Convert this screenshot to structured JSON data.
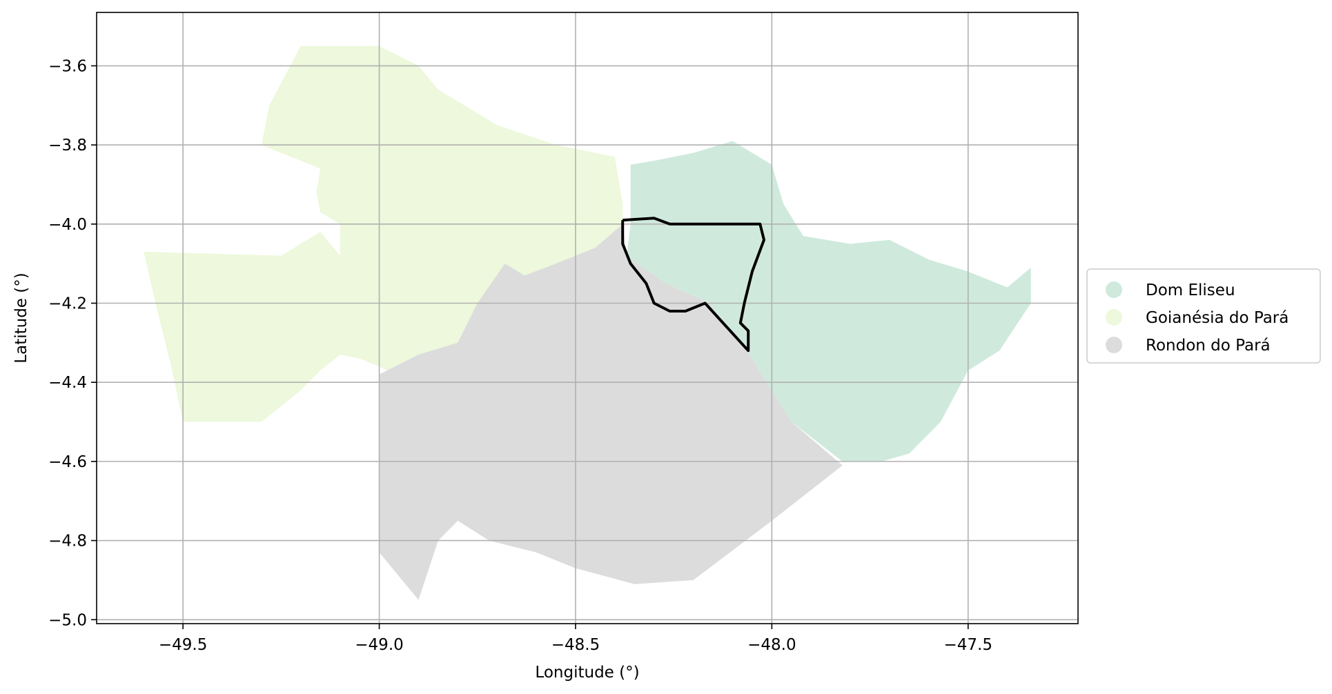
{
  "chart_data": {
    "type": "map",
    "xlabel": "Longitude (°)",
    "ylabel": "Latitude (°)",
    "xlim": [
      -49.72,
      -47.22
    ],
    "ylim": [
      -5.01,
      -3.465
    ],
    "xticks": [
      -49.5,
      -49.0,
      -48.5,
      -48.0,
      -47.5
    ],
    "xtick_labels": [
      "−49.5",
      "−49.0",
      "−48.5",
      "−48.0",
      "−47.5"
    ],
    "yticks": [
      -3.6,
      -3.8,
      -4.0,
      -4.2,
      -4.4,
      -4.6,
      -4.8,
      -5.0
    ],
    "ytick_labels": [
      "−3.6",
      "−3.8",
      "−4.0",
      "−4.2",
      "−4.4",
      "−4.6",
      "−4.8",
      "−5.0"
    ],
    "grid": true,
    "legend_position": "right-center",
    "regions": [
      {
        "name": "Dom Eliseu",
        "color": "#cfeadd",
        "outline": [
          [
            -48.36,
            -3.85
          ],
          [
            -48.3,
            -3.84
          ],
          [
            -48.2,
            -3.82
          ],
          [
            -48.1,
            -3.79
          ],
          [
            -48.0,
            -3.85
          ],
          [
            -47.97,
            -3.95
          ],
          [
            -47.92,
            -4.03
          ],
          [
            -47.8,
            -4.05
          ],
          [
            -47.7,
            -4.04
          ],
          [
            -47.6,
            -4.09
          ],
          [
            -47.5,
            -4.12
          ],
          [
            -47.4,
            -4.16
          ],
          [
            -47.34,
            -4.11
          ],
          [
            -47.34,
            -4.2
          ],
          [
            -47.42,
            -4.32
          ],
          [
            -47.5,
            -4.37
          ],
          [
            -47.57,
            -4.5
          ],
          [
            -47.65,
            -4.58
          ],
          [
            -47.72,
            -4.6
          ],
          [
            -47.82,
            -4.6
          ],
          [
            -47.95,
            -4.5
          ],
          [
            -48.07,
            -4.31
          ],
          [
            -48.16,
            -4.2
          ],
          [
            -48.27,
            -4.15
          ],
          [
            -48.37,
            -4.08
          ],
          [
            -48.36,
            -4.0
          ]
        ]
      },
      {
        "name": "Goianésia do Pará",
        "color": "#edf8dc",
        "outline": [
          [
            -49.6,
            -4.07
          ],
          [
            -49.25,
            -4.08
          ],
          [
            -49.15,
            -4.02
          ],
          [
            -49.1,
            -4.08
          ],
          [
            -49.1,
            -4.0
          ],
          [
            -49.15,
            -3.97
          ],
          [
            -49.16,
            -3.92
          ],
          [
            -49.15,
            -3.86
          ],
          [
            -49.2,
            -3.84
          ],
          [
            -49.3,
            -3.8
          ],
          [
            -49.28,
            -3.7
          ],
          [
            -49.2,
            -3.55
          ],
          [
            -49.0,
            -3.55
          ],
          [
            -48.9,
            -3.6
          ],
          [
            -48.85,
            -3.66
          ],
          [
            -48.7,
            -3.75
          ],
          [
            -48.55,
            -3.8
          ],
          [
            -48.4,
            -3.83
          ],
          [
            -48.38,
            -3.95
          ],
          [
            -48.38,
            -4.0
          ],
          [
            -48.45,
            -4.06
          ],
          [
            -48.55,
            -4.1
          ],
          [
            -48.63,
            -4.13
          ],
          [
            -48.68,
            -4.1
          ],
          [
            -48.75,
            -4.2
          ],
          [
            -48.8,
            -4.3
          ],
          [
            -48.9,
            -4.33
          ],
          [
            -48.98,
            -4.37
          ],
          [
            -49.0,
            -4.36
          ],
          [
            -49.05,
            -4.34
          ],
          [
            -49.1,
            -4.33
          ],
          [
            -49.15,
            -4.37
          ],
          [
            -49.2,
            -4.42
          ],
          [
            -49.3,
            -4.5
          ],
          [
            -49.5,
            -4.5
          ],
          [
            -49.53,
            -4.36
          ],
          [
            -49.57,
            -4.2
          ]
        ]
      },
      {
        "name": "Rondon do Pará",
        "color": "#dcdcdc",
        "outline": [
          [
            -49.0,
            -4.38
          ],
          [
            -48.9,
            -4.33
          ],
          [
            -48.8,
            -4.3
          ],
          [
            -48.75,
            -4.2
          ],
          [
            -48.68,
            -4.1
          ],
          [
            -48.63,
            -4.13
          ],
          [
            -48.55,
            -4.1
          ],
          [
            -48.45,
            -4.06
          ],
          [
            -48.38,
            -4.0
          ],
          [
            -48.37,
            -4.08
          ],
          [
            -48.27,
            -4.15
          ],
          [
            -48.16,
            -4.2
          ],
          [
            -48.07,
            -4.31
          ],
          [
            -47.95,
            -4.5
          ],
          [
            -47.82,
            -4.61
          ],
          [
            -48.0,
            -4.75
          ],
          [
            -48.2,
            -4.9
          ],
          [
            -48.35,
            -4.91
          ],
          [
            -48.5,
            -4.87
          ],
          [
            -48.6,
            -4.83
          ],
          [
            -48.72,
            -4.8
          ],
          [
            -48.8,
            -4.75
          ],
          [
            -48.85,
            -4.8
          ],
          [
            -48.9,
            -4.95
          ],
          [
            -49.0,
            -4.83
          ]
        ]
      }
    ],
    "highlight_outline": {
      "color": "#000000",
      "points": [
        [
          -48.38,
          -3.99
        ],
        [
          -48.3,
          -3.985
        ],
        [
          -48.26,
          -4.0
        ],
        [
          -48.03,
          -4.0
        ],
        [
          -48.02,
          -4.04
        ],
        [
          -48.05,
          -4.12
        ],
        [
          -48.07,
          -4.2
        ],
        [
          -48.08,
          -4.25
        ],
        [
          -48.06,
          -4.27
        ],
        [
          -48.06,
          -4.32
        ],
        [
          -48.17,
          -4.2
        ],
        [
          -48.22,
          -4.22
        ],
        [
          -48.26,
          -4.22
        ],
        [
          -48.3,
          -4.2
        ],
        [
          -48.32,
          -4.15
        ],
        [
          -48.36,
          -4.1
        ],
        [
          -48.38,
          -4.05
        ],
        [
          -48.38,
          -3.99
        ]
      ]
    }
  },
  "legend": {
    "items": [
      {
        "label": "Dom Eliseu",
        "color": "#cfeadd"
      },
      {
        "label": "Goianésia do Pará",
        "color": "#edf8dc"
      },
      {
        "label": "Rondon do Pará",
        "color": "#dcdcdc"
      }
    ]
  }
}
